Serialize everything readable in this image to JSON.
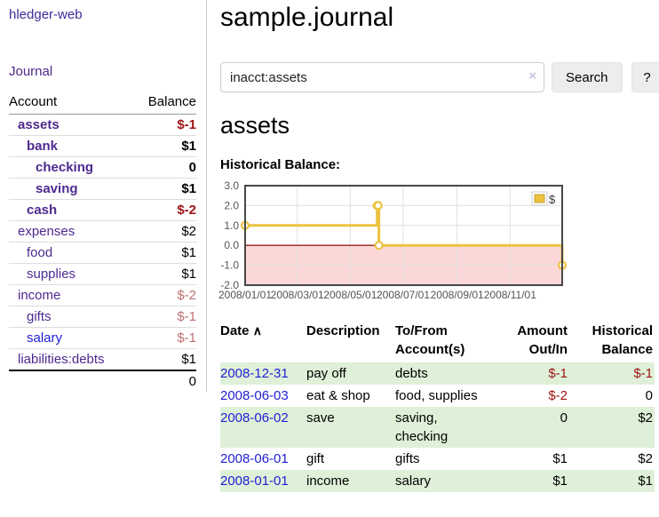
{
  "app": {
    "title": "hledger-web"
  },
  "colors": {
    "purple_dark": "#3e2b9c",
    "purple": "#4d2a8e",
    "link_blue": "#1f1fd4",
    "negative_red": "#9e1414",
    "negative_muted": "#bd6f6f",
    "row_green": "#dff0d8",
    "series_gold": "#edc240"
  },
  "sidebar": {
    "journal_link": "Journal",
    "accounts": {
      "header_account": "Account",
      "header_balance": "Balance",
      "rows": [
        {
          "name": "assets",
          "indent": 1,
          "bold": true,
          "balance": "$-1",
          "balance_color": "negative"
        },
        {
          "name": "bank",
          "indent": 2,
          "bold": true,
          "balance": "$1",
          "balance_color": "normal"
        },
        {
          "name": "checking",
          "indent": 3,
          "bold": true,
          "balance": "0",
          "balance_color": "normal"
        },
        {
          "name": "saving",
          "indent": 3,
          "bold": true,
          "balance": "$1",
          "balance_color": "normal"
        },
        {
          "name": "cash",
          "indent": 2,
          "bold": true,
          "balance": "$-2",
          "balance_color": "negative"
        },
        {
          "name": "expenses",
          "indent": 1,
          "bold": false,
          "balance": "$2",
          "balance_color": "normal"
        },
        {
          "name": "food",
          "indent": 2,
          "bold": false,
          "balance": "$1",
          "balance_color": "normal"
        },
        {
          "name": "supplies",
          "indent": 2,
          "bold": false,
          "balance": "$1",
          "balance_color": "normal"
        },
        {
          "name": "income",
          "indent": 1,
          "bold": false,
          "balance": "$-2",
          "balance_color": "negative-muted"
        },
        {
          "name": "gifts",
          "indent": 2,
          "bold": false,
          "balance": "$-1",
          "balance_color": "negative-muted"
        },
        {
          "name": "salary",
          "indent": 2,
          "bold": false,
          "unvisited": true,
          "balance": "$-1",
          "balance_color": "negative-muted"
        },
        {
          "name": "liabilities:debts",
          "indent": 1,
          "bold": false,
          "balance": "$1",
          "balance_color": "normal"
        }
      ],
      "total": "0"
    }
  },
  "main": {
    "title": "sample.journal",
    "search": {
      "value": "inacct:assets",
      "clear_icon": "×",
      "button_label": "Search",
      "help_label": "?"
    },
    "account_heading": "assets",
    "chart_label": "Historical Balance:"
  },
  "chart_data": {
    "type": "line",
    "step": true,
    "title": "Historical Balance",
    "legend": "$",
    "legend_position": "top-right",
    "grid": true,
    "xlim": [
      "2008-01-01",
      "2008-12-31"
    ],
    "ylim": [
      -2,
      3
    ],
    "xticks": [
      "2008/01/01",
      "2008/03/01",
      "2008/05/01",
      "2008/07/01",
      "2008/09/01",
      "2008/11/01"
    ],
    "yticks": [
      3,
      2,
      1,
      0,
      -1,
      -2
    ],
    "series": [
      {
        "name": "$",
        "color": "#edc240",
        "points": [
          [
            "2008-01-01",
            1
          ],
          [
            "2008-06-01",
            2
          ],
          [
            "2008-06-02",
            2
          ],
          [
            "2008-06-03",
            0
          ],
          [
            "2008-12-31",
            -1
          ]
        ]
      }
    ],
    "negative_region_color": "#fbd7d7",
    "zero_line_color": "#9b1c1c"
  },
  "register": {
    "sort_icon": "∧",
    "headers": [
      "Date",
      "Description",
      "To/From Account(s)",
      "Amount Out/In",
      "Historical Balance"
    ],
    "rows": [
      {
        "date": "2008-12-31",
        "description": "pay off",
        "accounts": "debts",
        "amount": "$-1",
        "amount_negative": true,
        "balance": "$-1",
        "balance_negative": true
      },
      {
        "date": "2008-06-03",
        "description": "eat & shop",
        "accounts": "food, supplies",
        "amount": "$-2",
        "amount_negative": true,
        "balance": "0",
        "balance_negative": false
      },
      {
        "date": "2008-06-02",
        "description": "save",
        "accounts": "saving, checking",
        "amount": "0",
        "amount_negative": false,
        "balance": "$2",
        "balance_negative": false
      },
      {
        "date": "2008-06-01",
        "description": "gift",
        "accounts": "gifts",
        "amount": "$1",
        "amount_negative": false,
        "balance": "$2",
        "balance_negative": false
      },
      {
        "date": "2008-01-01",
        "description": "income",
        "accounts": "salary",
        "amount": "$1",
        "amount_negative": false,
        "balance": "$1",
        "balance_negative": false
      }
    ]
  }
}
